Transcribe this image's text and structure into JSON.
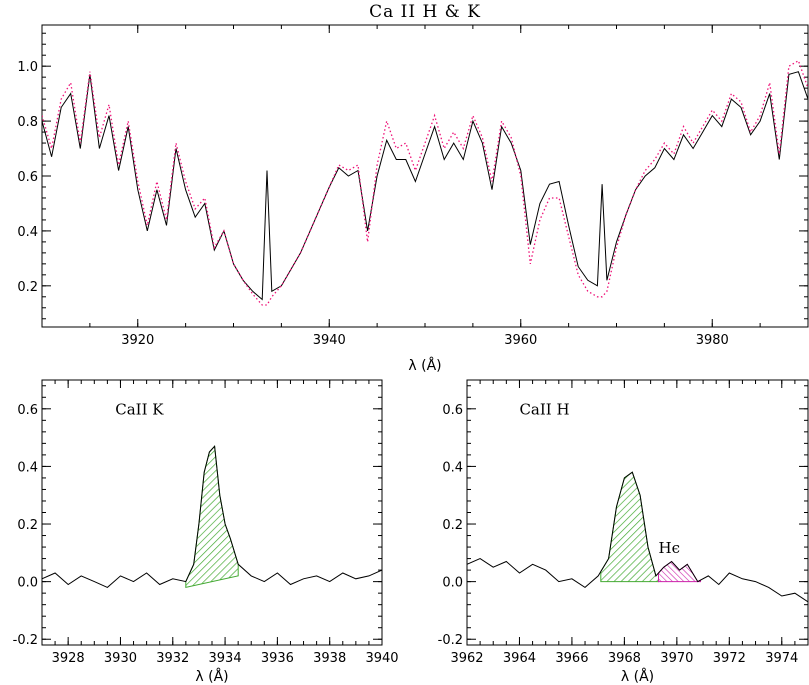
{
  "colors": {
    "observed": "#000000",
    "model": "#ee1177",
    "k_fill": "#44aa33",
    "heps_fill": "#cc22aa"
  },
  "chart_data": [
    {
      "type": "line",
      "id": "top",
      "title": "Ca II  H & K",
      "xlabel": "λ (Å)",
      "ylabel": "",
      "xlim": [
        3910,
        3990
      ],
      "ylim": [
        0.05,
        1.15
      ],
      "xticks": [
        3920,
        3940,
        3960,
        3980
      ],
      "yticks": [
        0.2,
        0.4,
        0.6,
        0.8,
        1.0
      ],
      "ytick_labels": [
        "0.2",
        "0.4",
        "0.6",
        "0.8",
        "1.0"
      ],
      "series": [
        {
          "style": "solid",
          "x": [
            3910,
            3911,
            3912,
            3913,
            3914,
            3915,
            3916,
            3917,
            3918,
            3919,
            3920,
            3921,
            3922,
            3923,
            3924,
            3925,
            3926,
            3927,
            3928,
            3929,
            3930,
            3931,
            3932,
            3933,
            3933.5,
            3934,
            3935,
            3936,
            3937,
            3938,
            3939,
            3940,
            3941,
            3942,
            3943,
            3944,
            3945,
            3946,
            3947,
            3948,
            3949,
            3950,
            3951,
            3952,
            3953,
            3954,
            3955,
            3956,
            3957,
            3958,
            3959,
            3960,
            3961,
            3962,
            3963,
            3964,
            3965,
            3966,
            3967,
            3968,
            3968.5,
            3969,
            3970,
            3971,
            3972,
            3973,
            3974,
            3975,
            3976,
            3977,
            3978,
            3979,
            3980,
            3981,
            3982,
            3983,
            3984,
            3985,
            3986,
            3987,
            3988,
            3989,
            3990
          ],
          "y": [
            0.8,
            0.67,
            0.85,
            0.9,
            0.7,
            0.97,
            0.7,
            0.82,
            0.62,
            0.78,
            0.55,
            0.4,
            0.55,
            0.42,
            0.7,
            0.55,
            0.45,
            0.5,
            0.33,
            0.4,
            0.28,
            0.22,
            0.18,
            0.15,
            0.62,
            0.18,
            0.2,
            0.26,
            0.32,
            0.4,
            0.48,
            0.56,
            0.63,
            0.6,
            0.62,
            0.4,
            0.6,
            0.73,
            0.66,
            0.66,
            0.58,
            0.68,
            0.78,
            0.66,
            0.72,
            0.66,
            0.8,
            0.72,
            0.55,
            0.78,
            0.72,
            0.62,
            0.35,
            0.5,
            0.57,
            0.58,
            0.42,
            0.27,
            0.22,
            0.2,
            0.57,
            0.22,
            0.36,
            0.46,
            0.55,
            0.6,
            0.63,
            0.7,
            0.66,
            0.75,
            0.7,
            0.76,
            0.82,
            0.78,
            0.88,
            0.85,
            0.75,
            0.8,
            0.9,
            0.66,
            0.97,
            0.98,
            0.88
          ]
        },
        {
          "style": "dotted",
          "x": [
            3910,
            3911,
            3912,
            3913,
            3914,
            3915,
            3916,
            3917,
            3918,
            3919,
            3920,
            3921,
            3922,
            3923,
            3924,
            3925,
            3926,
            3927,
            3928,
            3929,
            3930,
            3931,
            3932,
            3933,
            3933.5,
            3934,
            3935,
            3936,
            3937,
            3938,
            3939,
            3940,
            3941,
            3942,
            3943,
            3944,
            3945,
            3946,
            3947,
            3948,
            3949,
            3950,
            3951,
            3952,
            3953,
            3954,
            3955,
            3956,
            3957,
            3958,
            3959,
            3960,
            3961,
            3962,
            3963,
            3964,
            3965,
            3966,
            3967,
            3968,
            3968.5,
            3969,
            3970,
            3971,
            3972,
            3973,
            3974,
            3975,
            3976,
            3977,
            3978,
            3979,
            3980,
            3981,
            3982,
            3983,
            3984,
            3985,
            3986,
            3987,
            3988,
            3989,
            3990
          ],
          "y": [
            0.82,
            0.7,
            0.88,
            0.94,
            0.72,
            0.98,
            0.74,
            0.86,
            0.64,
            0.8,
            0.58,
            0.42,
            0.58,
            0.44,
            0.72,
            0.58,
            0.48,
            0.52,
            0.34,
            0.4,
            0.28,
            0.22,
            0.17,
            0.13,
            0.13,
            0.16,
            0.2,
            0.26,
            0.32,
            0.4,
            0.48,
            0.56,
            0.64,
            0.62,
            0.64,
            0.36,
            0.64,
            0.8,
            0.7,
            0.72,
            0.62,
            0.72,
            0.82,
            0.7,
            0.76,
            0.7,
            0.82,
            0.74,
            0.58,
            0.8,
            0.74,
            0.6,
            0.28,
            0.44,
            0.52,
            0.52,
            0.38,
            0.24,
            0.18,
            0.16,
            0.16,
            0.18,
            0.34,
            0.46,
            0.55,
            0.62,
            0.66,
            0.72,
            0.68,
            0.78,
            0.72,
            0.78,
            0.84,
            0.8,
            0.9,
            0.87,
            0.76,
            0.82,
            0.94,
            0.68,
            1.0,
            1.02,
            0.92
          ]
        }
      ]
    },
    {
      "type": "area",
      "id": "bottom-left",
      "xlabel": "λ (Å)",
      "xlim": [
        3927,
        3940
      ],
      "ylim": [
        -0.22,
        0.7
      ],
      "xticks": [
        3928,
        3930,
        3932,
        3934,
        3936,
        3938,
        3940
      ],
      "yticks": [
        -0.2,
        0.0,
        0.2,
        0.4,
        0.6
      ],
      "ytick_labels": [
        "-0.2",
        "0.0",
        "0.2",
        "0.4",
        "0.6"
      ],
      "annotations": [
        {
          "text": "CaII  K",
          "x": 3929.8,
          "y": 0.58
        }
      ],
      "series": [
        {
          "x": [
            3927,
            3927.5,
            3928,
            3928.5,
            3929,
            3929.5,
            3930,
            3930.5,
            3931,
            3931.5,
            3932,
            3932.5,
            3932.8,
            3933,
            3933.2,
            3933.4,
            3933.6,
            3933.8,
            3934,
            3934.2,
            3934.5,
            3935,
            3935.5,
            3936,
            3936.5,
            3937,
            3937.5,
            3938,
            3938.5,
            3939,
            3939.5,
            3940
          ],
          "y": [
            0.01,
            0.03,
            -0.01,
            0.02,
            0.0,
            -0.02,
            0.02,
            0.0,
            0.03,
            -0.01,
            0.01,
            0.0,
            0.06,
            0.2,
            0.38,
            0.45,
            0.47,
            0.3,
            0.2,
            0.15,
            0.06,
            0.02,
            0.0,
            0.03,
            -0.01,
            0.01,
            0.02,
            0.0,
            0.03,
            0.01,
            0.02,
            0.04
          ]
        }
      ],
      "filled_regions": [
        {
          "color_key": "k_fill",
          "x_from": 3932.5,
          "x_to": 3934.5,
          "base_from": -0.02,
          "base_to": 0.02
        }
      ]
    },
    {
      "type": "area",
      "id": "bottom-right",
      "xlabel": "λ (Å)",
      "xlim": [
        3962,
        3975
      ],
      "ylim": [
        -0.22,
        0.7
      ],
      "xticks": [
        3962,
        3964,
        3966,
        3968,
        3970,
        3972,
        3974
      ],
      "yticks": [
        -0.2,
        0.0,
        0.2,
        0.4,
        0.6
      ],
      "ytick_labels": [
        "-0.2",
        "0.0",
        "0.2",
        "0.4",
        "0.6"
      ],
      "annotations": [
        {
          "text": "CaII  H",
          "x": 3964.0,
          "y": 0.58
        },
        {
          "text": "Hϵ",
          "x": 3969.3,
          "y": 0.1
        }
      ],
      "series": [
        {
          "x": [
            3962,
            3962.5,
            3963,
            3963.5,
            3964,
            3964.5,
            3965,
            3965.5,
            3966,
            3966.5,
            3967,
            3967.4,
            3967.7,
            3968,
            3968.3,
            3968.6,
            3968.9,
            3969.2,
            3969.5,
            3969.8,
            3970.1,
            3970.4,
            3970.8,
            3971.2,
            3971.6,
            3972,
            3972.5,
            3973,
            3973.5,
            3974,
            3974.5,
            3975
          ],
          "y": [
            0.06,
            0.08,
            0.05,
            0.07,
            0.03,
            0.06,
            0.04,
            0.0,
            0.01,
            -0.02,
            0.02,
            0.08,
            0.26,
            0.36,
            0.38,
            0.3,
            0.12,
            0.02,
            0.05,
            0.07,
            0.04,
            0.06,
            0.0,
            0.02,
            -0.01,
            0.03,
            0.01,
            0.0,
            -0.02,
            -0.05,
            -0.04,
            -0.07
          ]
        }
      ],
      "filled_regions": [
        {
          "color_key": "k_fill",
          "x_from": 3967.1,
          "x_to": 3969.3,
          "base_from": 0.0,
          "base_to": 0.0
        },
        {
          "color_key": "heps_fill",
          "x_from": 3969.3,
          "x_to": 3970.9,
          "base_from": 0.0,
          "base_to": 0.0
        }
      ]
    }
  ]
}
